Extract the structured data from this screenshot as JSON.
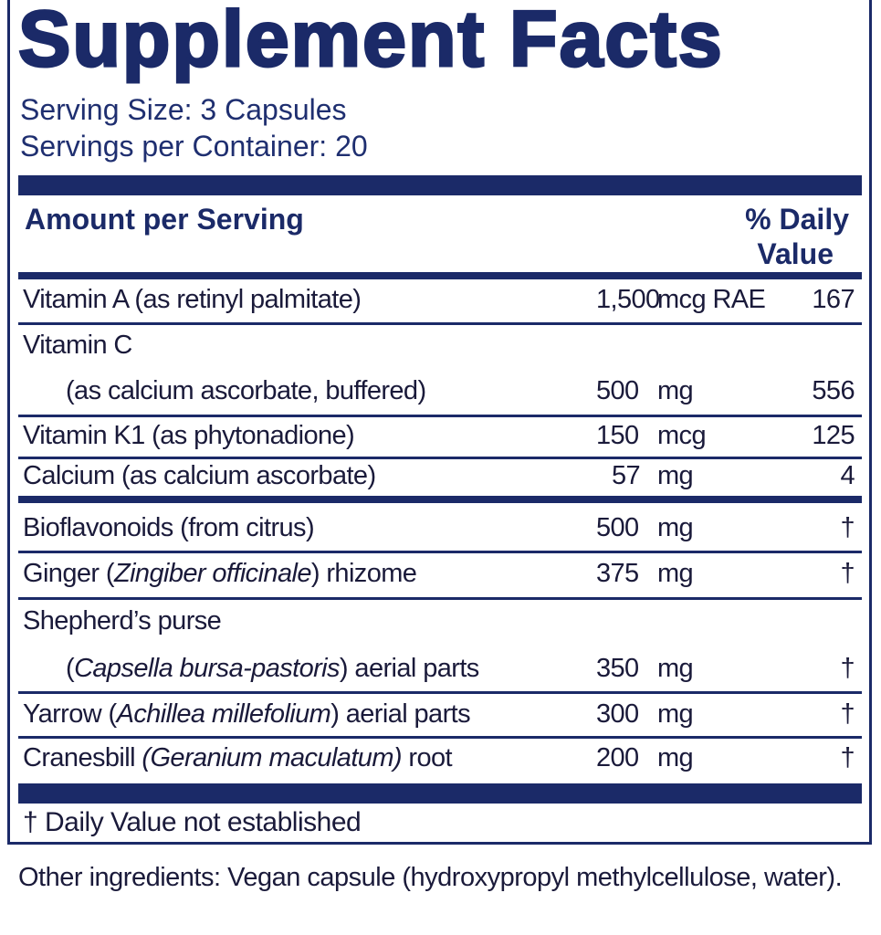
{
  "title": "Supplement Facts",
  "serving_size": "Serving Size: 3 Capsules",
  "servings_per_container": "Servings per Container: 20",
  "header": {
    "amount": "Amount per Serving",
    "dv_line1": "% Daily",
    "dv_line2": "Value"
  },
  "vitamins": [
    {
      "name": "Vitamin A (as retinyl palmitate)",
      "amount": "1,500",
      "unit": "mcg RAE",
      "dv": "167"
    },
    {
      "name": "Vitamin C",
      "name2": "(as calcium ascorbate, buffered)",
      "amount": "500",
      "unit": "mg",
      "dv": "556"
    },
    {
      "name": "Vitamin K1 (as phytonadione)",
      "amount": "150",
      "unit": "mcg",
      "dv": "125"
    },
    {
      "name": "Calcium (as calcium ascorbate)",
      "amount": "57",
      "unit": "mg",
      "dv": "4"
    }
  ],
  "botanicals": [
    {
      "pre": "Bioflavonoids (from citrus)",
      "latin": "",
      "post": "",
      "amount": "500",
      "unit": "mg",
      "dv": "†"
    },
    {
      "pre": "Ginger (",
      "latin": "Zingiber officinale",
      "post": ") rhizome",
      "amount": "375",
      "unit": "mg",
      "dv": "†"
    },
    {
      "line1": "Shepherd’s purse",
      "pre": "(",
      "latin": "Capsella bursa-pastoris",
      "post": ") aerial parts",
      "amount": "350",
      "unit": "mg",
      "dv": "†"
    },
    {
      "pre": "Yarrow (",
      "latin": "Achillea millefolium",
      "post": ") aerial parts",
      "amount": "300",
      "unit": "mg",
      "dv": "†"
    },
    {
      "pre": "Cranesbill ",
      "latin": "(Geranium maculatum)",
      "post": " root",
      "amount": "200",
      "unit": "mg",
      "dv": "†"
    }
  ],
  "footnote": "†  Daily Value not established",
  "other_ingredients": "Other ingredients: Vegan capsule (hydroxypropyl methylcellulose, water)."
}
